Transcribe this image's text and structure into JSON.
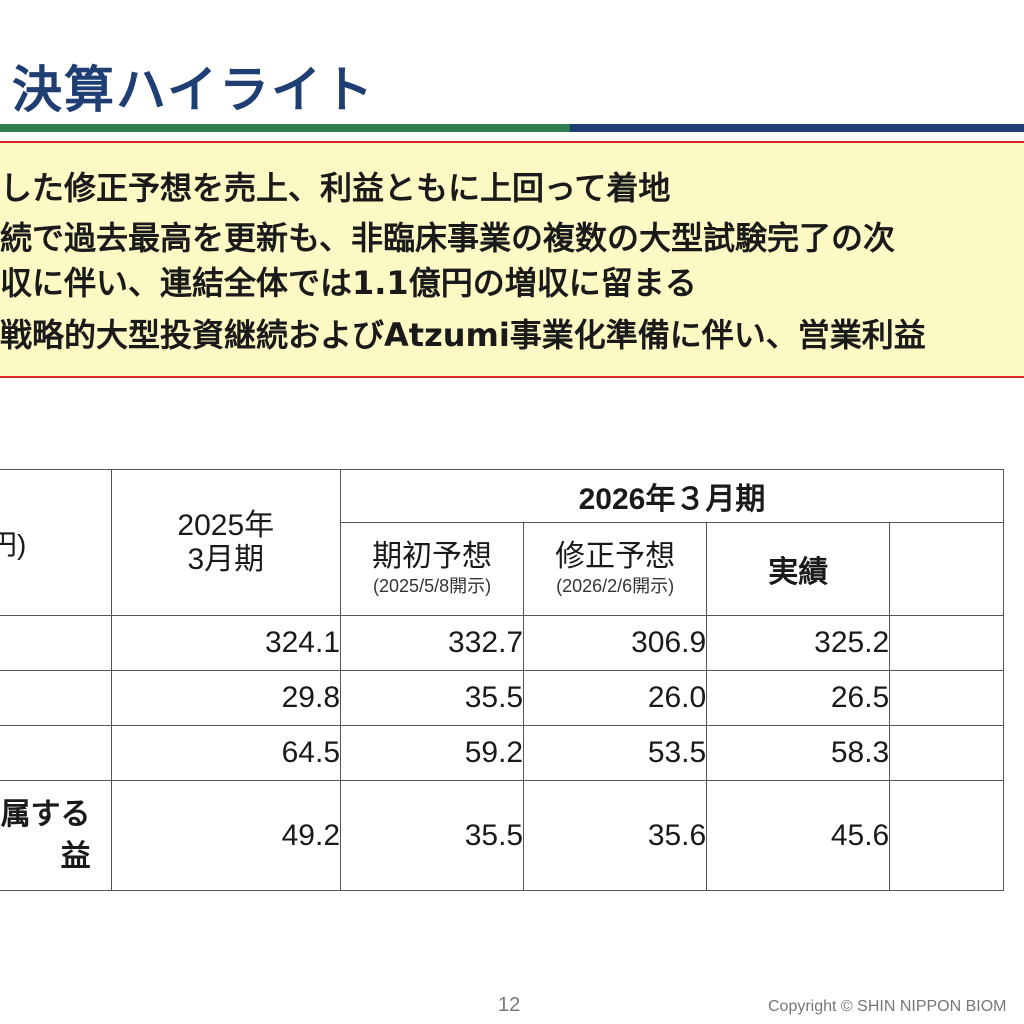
{
  "header": {
    "title": "決算ハイライト"
  },
  "summary": {
    "lines": [
      "した修正予想を売上、利益ともに上回って着地",
      "続で過去最高を更新も、非臨床事業の複数の大型試験完了の次",
      "収に伴い、連結全体では1.1億円の増収に留まる",
      "戦略的大型投資継続およびAtzumi事業化準備に伴い、営業利益"
    ]
  },
  "table": {
    "unit": "円)",
    "prev_period": "2025年\n3月期",
    "current_period": "2026年３月期",
    "columns": {
      "initial": {
        "label": "期初予想",
        "sub": "(2025/5/8開示)"
      },
      "revised": {
        "label": "修正予想",
        "sub": "(2026/2/6開示)"
      },
      "actual": {
        "label": "実績"
      }
    },
    "rows": [
      {
        "label": "",
        "prev": "324.1",
        "initial": "332.7",
        "revised": "306.9",
        "actual": "325.2"
      },
      {
        "label": "",
        "prev": "29.8",
        "initial": "35.5",
        "revised": "26.0",
        "actual": "26.5"
      },
      {
        "label": "",
        "prev": "64.5",
        "initial": "59.2",
        "revised": "53.5",
        "actual": "58.3"
      },
      {
        "label": "属する\n益",
        "prev": "49.2",
        "initial": "35.5",
        "revised": "35.6",
        "actual": "45.6"
      }
    ]
  },
  "footer": {
    "page_number": "12",
    "copyright": "Copyright © SHIN NIPPON BIOM"
  },
  "colors": {
    "title": "#1f3e73",
    "rule_green": "#2e7d4f",
    "rule_navy": "#1f3e73",
    "summary_bg": "#fdf9c4",
    "summary_border": "#d62a2a",
    "actual_values": "#1f6fb4"
  }
}
